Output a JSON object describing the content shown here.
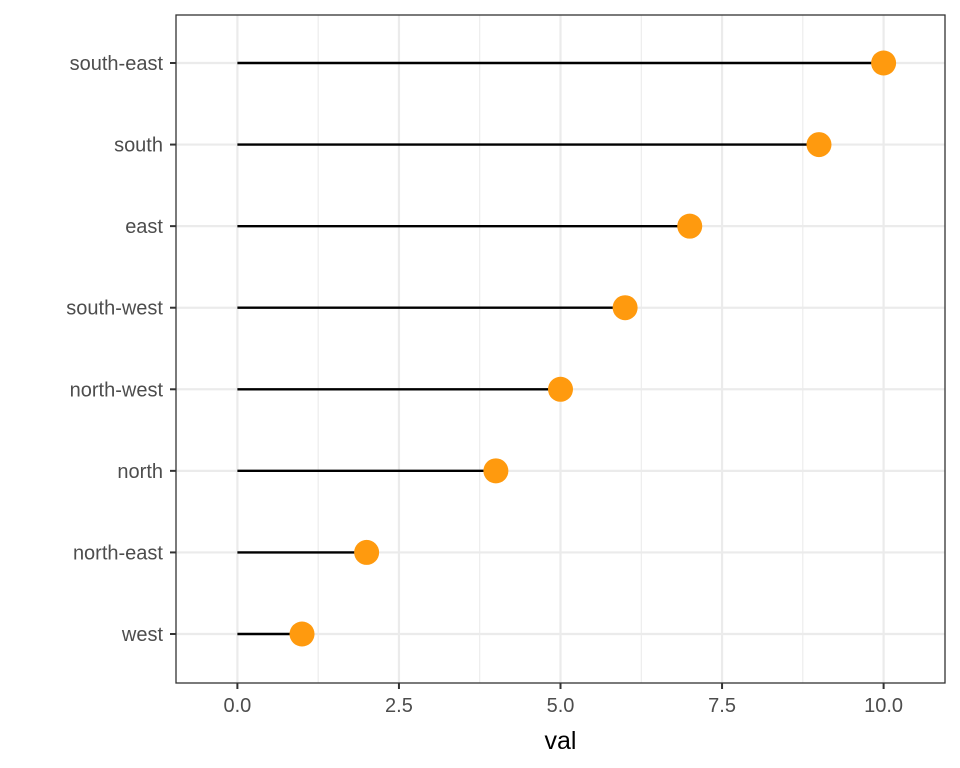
{
  "chart_data": {
    "type": "lollipop",
    "categories": [
      "west",
      "north-east",
      "north",
      "north-west",
      "south-west",
      "east",
      "south",
      "south-east"
    ],
    "values": [
      1,
      2,
      4,
      5,
      6,
      7,
      9,
      10
    ],
    "xlabel": "val",
    "ylabel": "",
    "xlim": [
      -0.95,
      10.95
    ],
    "xticks": [
      0.0,
      2.5,
      5.0,
      7.5,
      10.0
    ],
    "xtick_labels": [
      "0.0",
      "2.5",
      "5.0",
      "7.5",
      "10.0"
    ],
    "grid": true,
    "colors": {
      "point": "#ff9a0e",
      "stem": "#000000",
      "grid": "#ebebeb",
      "panel_border": "#333333"
    }
  }
}
